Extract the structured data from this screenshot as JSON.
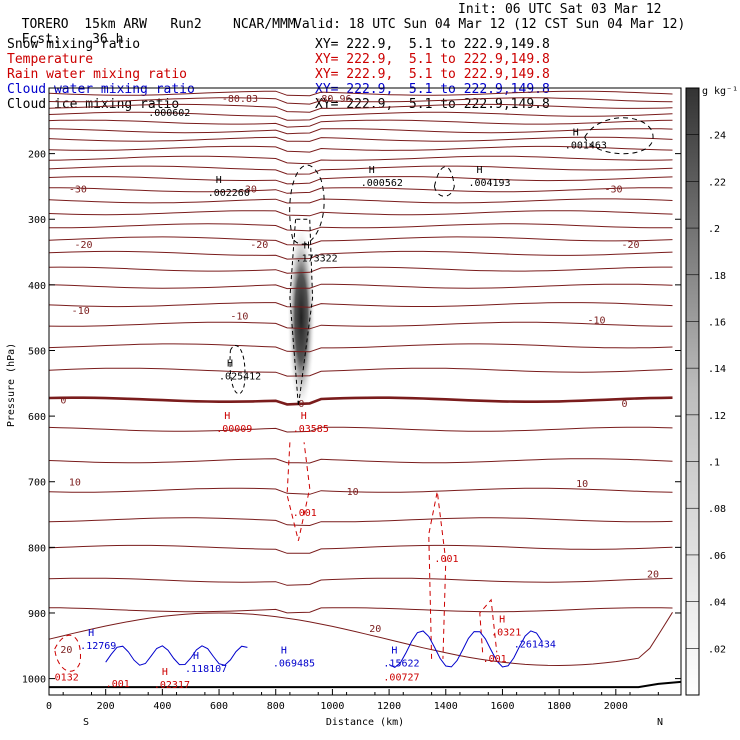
{
  "header": {
    "model": "TORERO",
    "grid": "15km ARW",
    "run": "Run2",
    "org": "NCAR/MMM",
    "init": "Init: 06 UTC Sat 03 Mar 12",
    "fcst_label": "Fcst:",
    "fcst_value": "36 h",
    "valid": "Valid: 18 UTC Sun 04 Mar 12 (12 CST Sun 04 Mar 12)"
  },
  "legend": [
    {
      "name": "Snow mixing ratio",
      "color": "#000000",
      "xy": "XY= 222.9,  5.1 to 222.9,149.8"
    },
    {
      "name": "Temperature",
      "color": "#cc0000",
      "xy": "XY= 222.9,  5.1 to 222.9,149.8"
    },
    {
      "name": "Rain water mixing ratio",
      "color": "#cc0000",
      "xy": "XY= 222.9,  5.1 to 222.9,149.8"
    },
    {
      "name": "Cloud water mixing ratio",
      "color": "#0000cc",
      "xy": "XY= 222.9,  5.1 to 222.9,149.8"
    },
    {
      "name": "Cloud ice mixing ratio",
      "color": "#000000",
      "xy": "XY= 222.9,  5.1 to 222.9,149.8"
    }
  ],
  "chart_data": {
    "type": "cross-section",
    "xlabel": "Distance (km)",
    "ylabel": "Pressure (hPa)",
    "x_ticks": [
      0,
      200,
      400,
      600,
      800,
      1000,
      1200,
      1400,
      1600,
      1800,
      2000
    ],
    "x_range": [
      0,
      2230
    ],
    "y_ticks": [
      200,
      300,
      400,
      500,
      600,
      700,
      800,
      900,
      1000
    ],
    "y_range": [
      100,
      1025
    ],
    "left_end": "S",
    "right_end": "N",
    "colorbar": {
      "unit": "g kg⁻¹",
      "ticks": [
        ".02",
        ".04",
        ".06",
        ".08",
        ".1",
        ".12",
        ".14",
        ".16",
        ".18",
        ".2",
        ".22",
        ".24"
      ]
    },
    "temperature_labels": [
      {
        "text": "-80.83",
        "x": 610,
        "p": 115
      },
      {
        "text": "-80.96",
        "x": 940,
        "p": 115
      },
      {
        "text": "-30",
        "x": 70,
        "p": 253
      },
      {
        "text": "-30",
        "x": 670,
        "p": 253
      },
      {
        "text": "-30",
        "x": 1960,
        "p": 253
      },
      {
        "text": "-20",
        "x": 90,
        "p": 338
      },
      {
        "text": "-20",
        "x": 710,
        "p": 338
      },
      {
        "text": "-20",
        "x": 2020,
        "p": 338
      },
      {
        "text": "-10",
        "x": 80,
        "p": 438
      },
      {
        "text": "-10",
        "x": 640,
        "p": 447
      },
      {
        "text": "-10",
        "x": 1900,
        "p": 453
      },
      {
        "text": "0",
        "x": 40,
        "p": 575
      },
      {
        "text": "0",
        "x": 880,
        "p": 580
      },
      {
        "text": "0",
        "x": 2020,
        "p": 580
      },
      {
        "text": "10",
        "x": 70,
        "p": 700
      },
      {
        "text": "10",
        "x": 1050,
        "p": 714
      },
      {
        "text": "10",
        "x": 1860,
        "p": 702
      },
      {
        "text": "20",
        "x": 40,
        "p": 955
      },
      {
        "text": "20",
        "x": 1130,
        "p": 923
      },
      {
        "text": "20",
        "x": 2110,
        "p": 840
      }
    ],
    "extrema_labels": [
      {
        "text": ".000602",
        "x": 350,
        "p": 138,
        "color": "#000000",
        "mark": ""
      },
      {
        "text": ".001463",
        "x": 1820,
        "p": 188,
        "color": "#000000",
        "mark": "H"
      },
      {
        "text": ".002260",
        "x": 560,
        "p": 260,
        "color": "#000000",
        "mark": "H"
      },
      {
        "text": ".000562",
        "x": 1100,
        "p": 245,
        "color": "#000000",
        "mark": "H"
      },
      {
        "text": ".004193",
        "x": 1480,
        "p": 245,
        "color": "#000000",
        "mark": "H"
      },
      {
        "text": ".173322",
        "x": 870,
        "p": 360,
        "color": "#000000",
        "mark": "H"
      },
      {
        "text": ".025412",
        "x": 600,
        "p": 540,
        "color": "#000000",
        "mark": "H"
      },
      {
        "text": ".00009",
        "x": 590,
        "p": 620,
        "color": "#cc0000",
        "mark": "H"
      },
      {
        "text": ".03585",
        "x": 860,
        "p": 620,
        "color": "#cc0000",
        "mark": "H"
      },
      {
        "text": ".001",
        "x": 860,
        "p": 748,
        "color": "#cc0000",
        "mark": ""
      },
      {
        "text": ".001",
        "x": 1360,
        "p": 818,
        "color": "#cc0000",
        "mark": ""
      },
      {
        "text": ".0321",
        "x": 1560,
        "p": 930,
        "color": "#cc0000",
        "mark": "H"
      },
      {
        "text": ".261434",
        "x": 1640,
        "p": 948,
        "color": "#0000cc",
        "mark": ""
      },
      {
        "text": ".12769",
        "x": 110,
        "p": 950,
        "color": "#0000cc",
        "mark": "H"
      },
      {
        "text": ".118107",
        "x": 480,
        "p": 985,
        "color": "#0000cc",
        "mark": "H"
      },
      {
        "text": ".069485",
        "x": 790,
        "p": 977,
        "color": "#0000cc",
        "mark": "H"
      },
      {
        "text": ".15622",
        "x": 1180,
        "p": 977,
        "color": "#0000cc",
        "mark": "H"
      },
      {
        "text": ".001",
        "x": 1530,
        "p": 970,
        "color": "#cc0000",
        "mark": ""
      },
      {
        "text": "0132",
        "x": 20,
        "p": 998,
        "color": "#cc0000",
        "mark": ""
      },
      {
        "text": ".001",
        "x": 200,
        "p": 1008,
        "color": "#cc0000",
        "mark": ""
      },
      {
        "text": ".02317",
        "x": 370,
        "p": 1010,
        "color": "#cc0000",
        "mark": "H"
      },
      {
        "text": ".00727",
        "x": 1180,
        "p": 998,
        "color": "#cc0000",
        "mark": ""
      }
    ]
  }
}
